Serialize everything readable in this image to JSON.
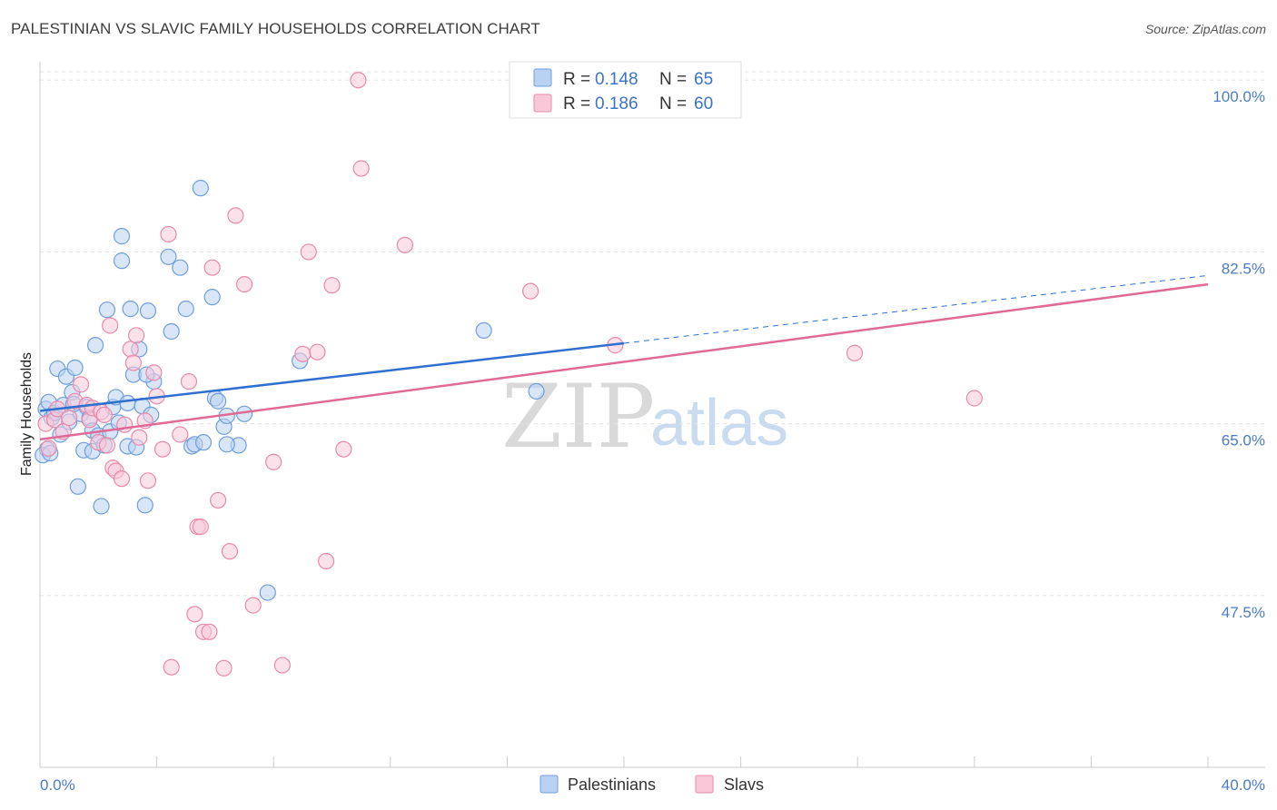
{
  "header": {
    "title": "PALESTINIAN VS SLAVIC FAMILY HOUSEHOLDS CORRELATION CHART",
    "source": "Source: ZipAtlas.com"
  },
  "watermark": {
    "zip": "ZIP",
    "atlas": "atlas"
  },
  "legend": {
    "palestinians": {
      "r_label": "R =",
      "r_value": "0.148",
      "n_label": "N =",
      "n_value": "65"
    },
    "slavs": {
      "r_label": "R =",
      "r_value": "0.186",
      "n_label": "N =",
      "n_value": "60"
    }
  },
  "bottom_legend": [
    "Palestinians",
    "Slavs"
  ],
  "colors": {
    "palestinians_fill": "#b9d2f3",
    "palestinians_stroke": "#6f9fdc",
    "palestinians_line": "#2f6fd0",
    "slavs_fill": "#f8c8d8",
    "slavs_stroke": "#e98aab",
    "slavs_line": "#e06a96",
    "tick": "#4a7cc9",
    "grid": "#e3e3e3"
  },
  "chart_data": {
    "type": "scatter",
    "title": "PALESTINIAN VS SLAVIC FAMILY HOUSEHOLDS CORRELATION CHART",
    "xlabel": "",
    "ylabel": "Family Households",
    "xlim": [
      0,
      40
    ],
    "ylim": [
      30,
      101.5
    ],
    "x_tick_labels": [
      "0.0%",
      "40.0%"
    ],
    "y_ticks": [
      47.5,
      65.0,
      82.5,
      100.0
    ],
    "y_tick_labels": [
      "47.5%",
      "65.0%",
      "82.5%",
      "100.0%"
    ],
    "grid": true,
    "series": [
      {
        "name": "Palestinians",
        "points": [
          [
            0.2,
            66.5
          ],
          [
            0.3,
            67.2
          ],
          [
            0.4,
            65.6
          ],
          [
            0.5,
            66.1
          ],
          [
            0.6,
            70.6
          ],
          [
            0.7,
            63.9
          ],
          [
            0.8,
            66.9
          ],
          [
            0.9,
            69.8
          ],
          [
            1.0,
            65.2
          ],
          [
            1.1,
            68.2
          ],
          [
            1.2,
            70.7
          ],
          [
            1.3,
            58.6
          ],
          [
            1.4,
            66.0
          ],
          [
            1.5,
            62.3
          ],
          [
            1.6,
            66.7
          ],
          [
            1.7,
            65.6
          ],
          [
            1.8,
            64.3
          ],
          [
            1.8,
            62.2
          ],
          [
            1.9,
            73.0
          ],
          [
            2.0,
            63.8
          ],
          [
            2.1,
            56.6
          ],
          [
            2.2,
            62.8
          ],
          [
            2.3,
            76.6
          ],
          [
            2.4,
            64.2
          ],
          [
            2.5,
            66.7
          ],
          [
            2.6,
            67.7
          ],
          [
            2.7,
            65.1
          ],
          [
            2.8,
            84.1
          ],
          [
            2.8,
            81.6
          ],
          [
            3.0,
            67.1
          ],
          [
            3.0,
            62.7
          ],
          [
            3.1,
            76.7
          ],
          [
            3.2,
            70.0
          ],
          [
            3.3,
            62.6
          ],
          [
            3.4,
            72.6
          ],
          [
            3.5,
            66.8
          ],
          [
            3.6,
            56.7
          ],
          [
            3.7,
            76.5
          ],
          [
            3.8,
            65.9
          ],
          [
            3.9,
            69.3
          ],
          [
            0.25,
            62.4
          ],
          [
            4.4,
            82.0
          ],
          [
            4.5,
            74.4
          ],
          [
            4.8,
            80.9
          ],
          [
            5.0,
            76.7
          ],
          [
            5.2,
            62.7
          ],
          [
            5.3,
            62.9
          ],
          [
            5.5,
            89.0
          ],
          [
            5.6,
            63.1
          ],
          [
            5.9,
            77.9
          ],
          [
            6.0,
            67.6
          ],
          [
            6.1,
            67.3
          ],
          [
            6.3,
            64.7
          ],
          [
            6.4,
            65.8
          ],
          [
            6.8,
            62.8
          ],
          [
            7.0,
            66.0
          ],
          [
            7.8,
            47.8
          ],
          [
            8.9,
            71.4
          ],
          [
            15.2,
            74.5
          ],
          [
            17.0,
            68.3
          ],
          [
            0.1,
            61.8
          ],
          [
            0.35,
            62.0
          ],
          [
            1.15,
            67.0
          ],
          [
            3.65,
            70.0
          ],
          [
            6.4,
            62.9
          ]
        ],
        "trend": {
          "x": [
            0,
            20
          ],
          "y": [
            66.3,
            73.2
          ]
        },
        "trend_dashed": {
          "x": [
            20,
            40
          ],
          "y": [
            73.2,
            80.1
          ]
        }
      },
      {
        "name": "Slavs",
        "points": [
          [
            0.2,
            65.0
          ],
          [
            0.3,
            62.5
          ],
          [
            0.5,
            65.4
          ],
          [
            0.6,
            66.5
          ],
          [
            0.8,
            64.2
          ],
          [
            1.0,
            65.6
          ],
          [
            1.2,
            67.3
          ],
          [
            1.4,
            69.0
          ],
          [
            1.6,
            66.9
          ],
          [
            1.7,
            65.4
          ],
          [
            1.8,
            66.6
          ],
          [
            2.0,
            63.1
          ],
          [
            2.1,
            66.2
          ],
          [
            2.3,
            62.8
          ],
          [
            2.4,
            75.0
          ],
          [
            2.5,
            60.5
          ],
          [
            2.6,
            60.2
          ],
          [
            2.8,
            59.4
          ],
          [
            2.9,
            64.9
          ],
          [
            3.1,
            72.6
          ],
          [
            3.2,
            71.2
          ],
          [
            3.3,
            74.0
          ],
          [
            3.4,
            63.6
          ],
          [
            3.6,
            65.3
          ],
          [
            3.7,
            59.2
          ],
          [
            3.9,
            70.2
          ],
          [
            4.0,
            67.8
          ],
          [
            4.2,
            62.4
          ],
          [
            4.4,
            84.3
          ],
          [
            4.5,
            40.2
          ],
          [
            4.8,
            63.9
          ],
          [
            5.1,
            69.3
          ],
          [
            5.3,
            45.6
          ],
          [
            5.4,
            54.5
          ],
          [
            5.5,
            54.5
          ],
          [
            5.6,
            43.8
          ],
          [
            5.8,
            43.8
          ],
          [
            6.1,
            57.2
          ],
          [
            6.3,
            40.1
          ],
          [
            6.5,
            52.0
          ],
          [
            6.7,
            86.2
          ],
          [
            7.0,
            79.2
          ],
          [
            7.3,
            46.5
          ],
          [
            8.0,
            61.1
          ],
          [
            8.3,
            40.4
          ],
          [
            9.0,
            72.1
          ],
          [
            9.2,
            82.5
          ],
          [
            9.5,
            72.3
          ],
          [
            9.8,
            51.0
          ],
          [
            10.0,
            79.1
          ],
          [
            10.4,
            62.4
          ],
          [
            10.9,
            100.0
          ],
          [
            11.0,
            91.0
          ],
          [
            12.5,
            83.2
          ],
          [
            16.8,
            78.5
          ],
          [
            19.7,
            73.0
          ],
          [
            27.9,
            72.2
          ],
          [
            32.0,
            67.6
          ],
          [
            5.9,
            80.9
          ],
          [
            2.2,
            65.9
          ]
        ],
        "trend": {
          "x": [
            0,
            40
          ],
          "y": [
            63.4,
            79.2
          ]
        }
      }
    ]
  }
}
